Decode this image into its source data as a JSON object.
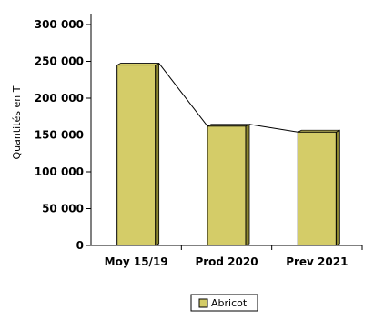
{
  "chart_data": {
    "type": "bar",
    "categories": [
      "Moy 15/19",
      "Prod 2020",
      "Prev 2021"
    ],
    "series": [
      {
        "name": "Abricot",
        "values": [
          245000,
          162000,
          154000
        ]
      }
    ],
    "ylabel": "Quantités en T",
    "ylim": [
      0,
      300000
    ],
    "yticks": [
      "0",
      "50 000",
      "100 000",
      "150 000",
      "200 000",
      "250 000",
      "300 000"
    ],
    "grid": false,
    "legend": "bottom",
    "colors": {
      "bar": "#d4cc68",
      "bar_side": "#8c8630",
      "outline": "#000000"
    },
    "connector_line": true
  }
}
